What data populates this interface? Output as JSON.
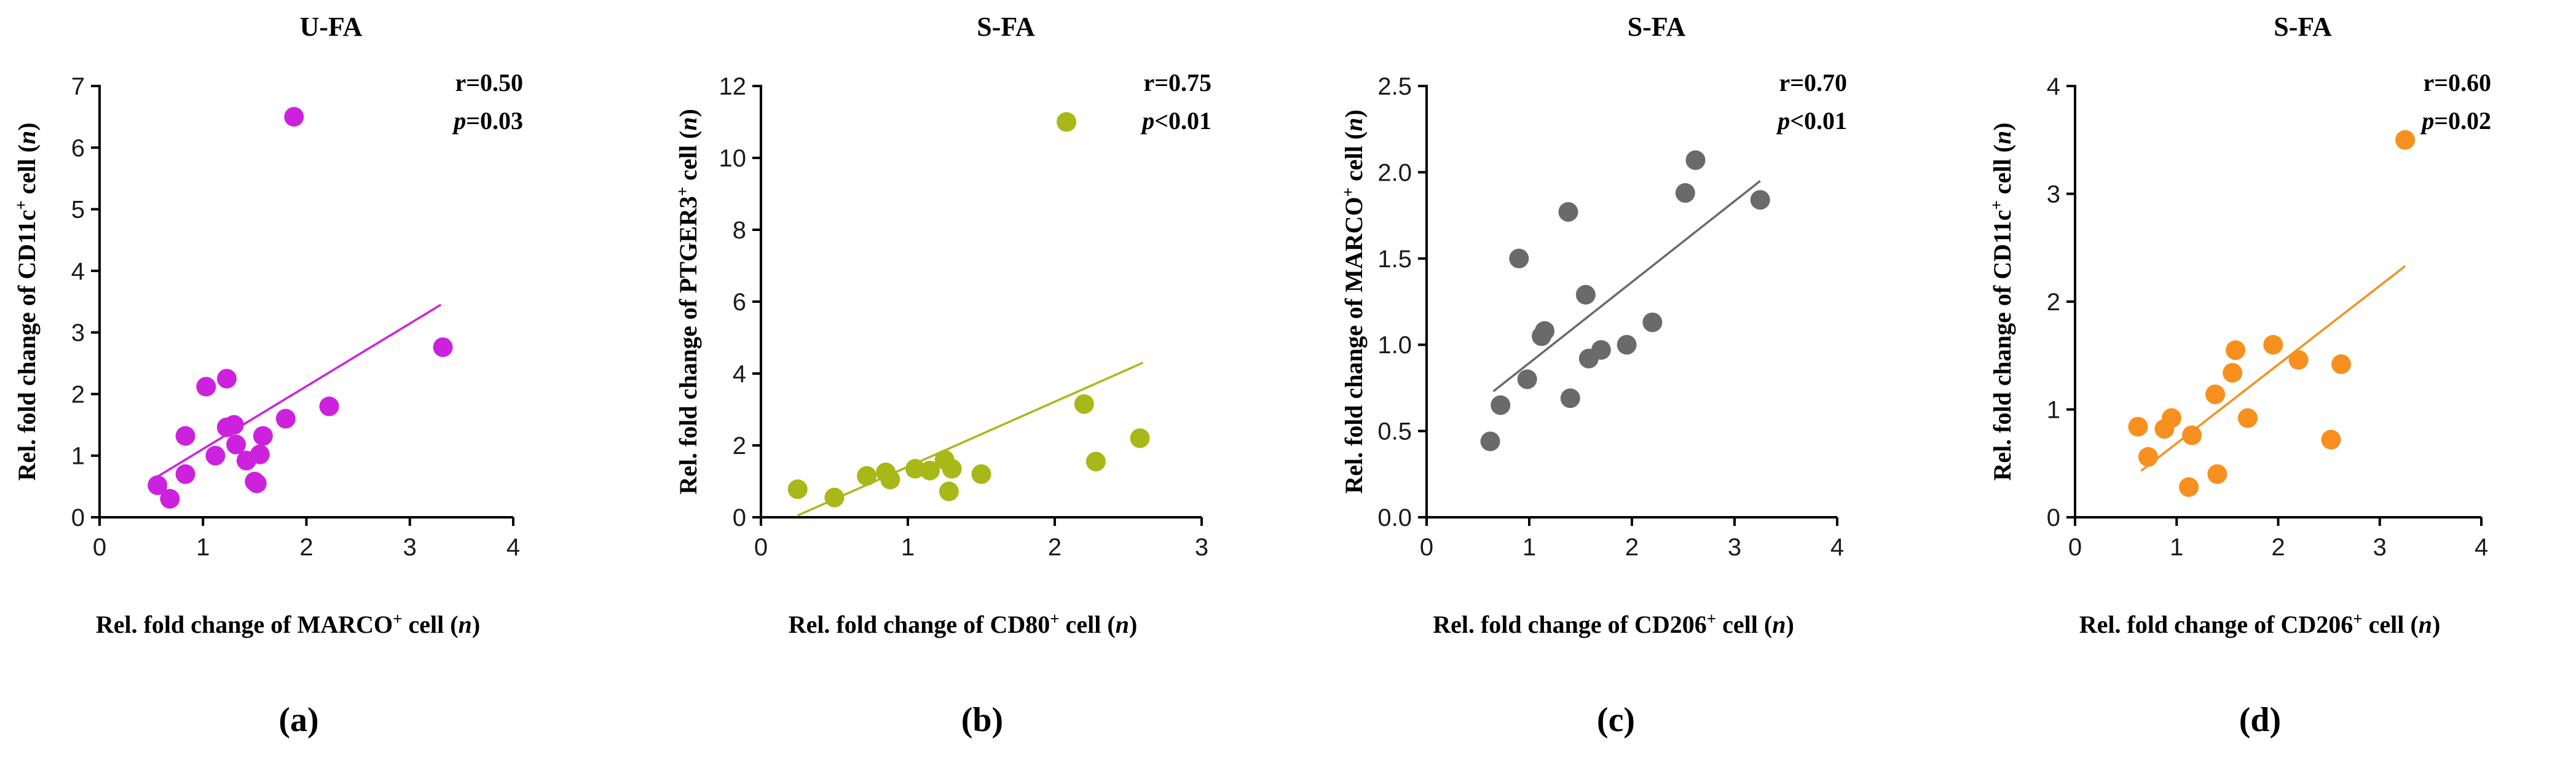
{
  "captions": [
    "(a)",
    "(b)",
    "(c)",
    "(d)"
  ],
  "chart_data": [
    {
      "type": "scatter",
      "title": "U-FA",
      "xlabel": "Rel. fold change of MARCO⁺ cell (n)",
      "ylabel": "Rel. fold change of CD11c⁺ cell (n)",
      "xlim": [
        0,
        4
      ],
      "ylim": [
        0,
        7
      ],
      "xticks": [
        "0",
        "1",
        "2",
        "3",
        "4"
      ],
      "yticks": [
        "0",
        "1",
        "2",
        "3",
        "4",
        "5",
        "6",
        "7"
      ],
      "color": "#cc22dd",
      "stat_r": "r=0.50",
      "stat_p": "p=0.03",
      "trend": {
        "x1": 0.55,
        "y1": 0.65,
        "x2": 3.3,
        "y2": 3.45
      },
      "points": [
        {
          "x": 0.56,
          "y": 0.52
        },
        {
          "x": 0.68,
          "y": 0.3
        },
        {
          "x": 0.83,
          "y": 1.32
        },
        {
          "x": 0.83,
          "y": 0.7
        },
        {
          "x": 1.03,
          "y": 2.12
        },
        {
          "x": 1.12,
          "y": 1.0
        },
        {
          "x": 1.23,
          "y": 2.25
        },
        {
          "x": 1.23,
          "y": 1.46
        },
        {
          "x": 1.3,
          "y": 1.5
        },
        {
          "x": 1.32,
          "y": 1.18
        },
        {
          "x": 1.42,
          "y": 0.92
        },
        {
          "x": 1.5,
          "y": 0.58
        },
        {
          "x": 1.52,
          "y": 0.55
        },
        {
          "x": 1.55,
          "y": 1.02
        },
        {
          "x": 1.58,
          "y": 1.32
        },
        {
          "x": 1.8,
          "y": 1.6
        },
        {
          "x": 1.88,
          "y": 6.5
        },
        {
          "x": 2.22,
          "y": 1.8
        },
        {
          "x": 3.32,
          "y": 2.76
        }
      ]
    },
    {
      "type": "scatter",
      "title": "S-FA",
      "xlabel": "Rel. fold change of CD80⁺ cell (n)",
      "ylabel": "Rel. fold change of PTGER3⁺ cell (n)",
      "xlim": [
        0,
        3
      ],
      "ylim": [
        0,
        12
      ],
      "xticks": [
        "0",
        "1",
        "2",
        "3"
      ],
      "yticks": [
        "0",
        "2",
        "4",
        "6",
        "8",
        "10",
        "12"
      ],
      "color": "#a8b818",
      "stat_r": "r=0.75",
      "stat_p": "p<0.01",
      "trend": {
        "x1": 0.25,
        "y1": 0.05,
        "x2": 2.6,
        "y2": 4.3
      },
      "points": [
        {
          "x": 0.25,
          "y": 0.78
        },
        {
          "x": 0.5,
          "y": 0.55
        },
        {
          "x": 0.72,
          "y": 1.15
        },
        {
          "x": 0.85,
          "y": 1.25
        },
        {
          "x": 0.88,
          "y": 1.05
        },
        {
          "x": 1.05,
          "y": 1.35
        },
        {
          "x": 1.15,
          "y": 1.3
        },
        {
          "x": 1.25,
          "y": 1.6
        },
        {
          "x": 1.28,
          "y": 0.72
        },
        {
          "x": 1.3,
          "y": 1.35
        },
        {
          "x": 1.5,
          "y": 1.2
        },
        {
          "x": 2.08,
          "y": 11.0
        },
        {
          "x": 2.2,
          "y": 3.15
        },
        {
          "x": 2.28,
          "y": 1.55
        },
        {
          "x": 2.58,
          "y": 2.2
        }
      ]
    },
    {
      "type": "scatter",
      "title": "S-FA",
      "xlabel": "Rel. fold change of CD206⁺ cell (n)",
      "ylabel": "Rel. fold change of MARCO⁺ cell (n)",
      "xlim": [
        0,
        4
      ],
      "ylim": [
        0,
        2.5
      ],
      "xticks": [
        "0",
        "1",
        "2",
        "3",
        "4"
      ],
      "yticks": [
        "0.0",
        "0.5",
        "1.0",
        "1.5",
        "2.0",
        "2.5"
      ],
      "color": "#6a6a6a",
      "stat_r": "r=0.70",
      "stat_p": "p<0.01",
      "trend": {
        "x1": 0.65,
        "y1": 0.73,
        "x2": 3.25,
        "y2": 1.95
      },
      "points": [
        {
          "x": 0.62,
          "y": 0.44
        },
        {
          "x": 0.72,
          "y": 0.65
        },
        {
          "x": 0.9,
          "y": 1.5
        },
        {
          "x": 0.98,
          "y": 0.8
        },
        {
          "x": 1.12,
          "y": 1.05
        },
        {
          "x": 1.15,
          "y": 1.08
        },
        {
          "x": 1.38,
          "y": 1.77
        },
        {
          "x": 1.4,
          "y": 0.69
        },
        {
          "x": 1.55,
          "y": 1.29
        },
        {
          "x": 1.58,
          "y": 0.92
        },
        {
          "x": 1.7,
          "y": 0.97
        },
        {
          "x": 1.95,
          "y": 1.0
        },
        {
          "x": 2.2,
          "y": 1.13
        },
        {
          "x": 2.52,
          "y": 1.88
        },
        {
          "x": 2.62,
          "y": 2.07
        },
        {
          "x": 3.25,
          "y": 1.84
        }
      ]
    },
    {
      "type": "scatter",
      "title": "S-FA",
      "xlabel": "Rel. fold change of CD206⁺ cell (n)",
      "ylabel": "Rel. fold change of CD11c⁺ cell (n)",
      "xlim": [
        0,
        4
      ],
      "ylim": [
        0,
        4
      ],
      "xticks": [
        "0",
        "1",
        "2",
        "3",
        "4"
      ],
      "yticks": [
        "0",
        "1",
        "2",
        "3",
        "4"
      ],
      "color": "#f7901e",
      "stat_r": "r=0.60",
      "stat_p": "p=0.02",
      "trend": {
        "x1": 0.65,
        "y1": 0.43,
        "x2": 3.25,
        "y2": 2.33
      },
      "points": [
        {
          "x": 0.62,
          "y": 0.84
        },
        {
          "x": 0.72,
          "y": 0.56
        },
        {
          "x": 0.88,
          "y": 0.82
        },
        {
          "x": 0.95,
          "y": 0.92
        },
        {
          "x": 1.12,
          "y": 0.28
        },
        {
          "x": 1.15,
          "y": 0.76
        },
        {
          "x": 1.38,
          "y": 1.14
        },
        {
          "x": 1.4,
          "y": 0.4
        },
        {
          "x": 1.55,
          "y": 1.34
        },
        {
          "x": 1.58,
          "y": 1.55
        },
        {
          "x": 1.7,
          "y": 0.92
        },
        {
          "x": 1.95,
          "y": 1.6
        },
        {
          "x": 2.2,
          "y": 1.46
        },
        {
          "x": 2.52,
          "y": 0.72
        },
        {
          "x": 2.62,
          "y": 1.42
        },
        {
          "x": 3.25,
          "y": 3.5
        }
      ]
    }
  ]
}
